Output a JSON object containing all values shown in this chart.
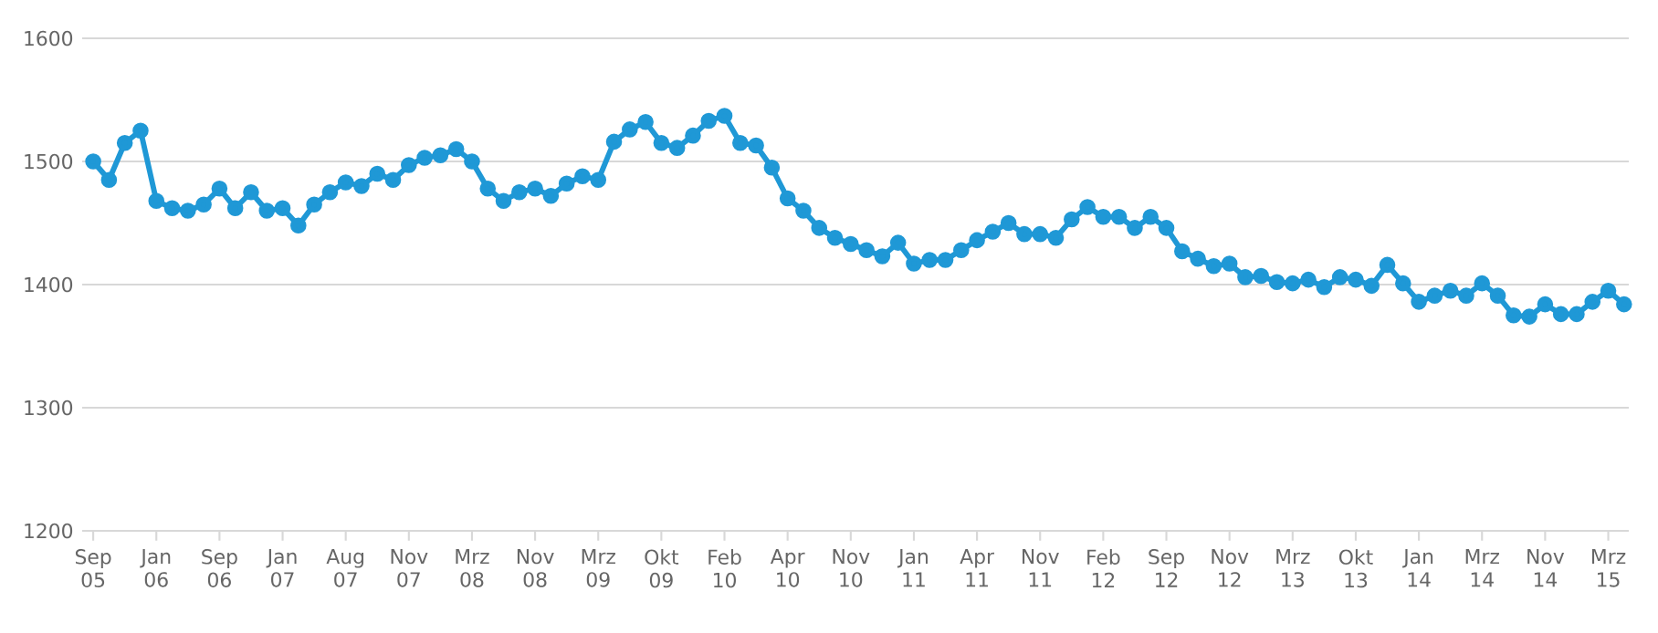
{
  "chart_data": {
    "type": "line",
    "categories": [
      "Sep 05",
      null,
      null,
      null,
      "Jan 06",
      null,
      null,
      null,
      "Sep 06",
      null,
      null,
      null,
      "Jan 07",
      null,
      null,
      null,
      "Aug 07",
      null,
      null,
      null,
      "Nov 07",
      null,
      null,
      null,
      "Mrz 08",
      null,
      null,
      null,
      "Nov 08",
      null,
      null,
      null,
      "Mrz 09",
      null,
      null,
      null,
      "Okt 09",
      null,
      null,
      null,
      "Feb 10",
      null,
      null,
      null,
      "Apr 10",
      null,
      null,
      null,
      "Nov 10",
      null,
      null,
      null,
      "Jan 11",
      null,
      null,
      null,
      "Apr 11",
      null,
      null,
      null,
      "Nov 11",
      null,
      null,
      null,
      "Feb 12",
      null,
      null,
      null,
      "Sep 12",
      null,
      null,
      null,
      "Nov 12",
      null,
      null,
      null,
      "Mrz 13",
      null,
      null,
      null,
      "Okt 13",
      null,
      null,
      null,
      "Jan 14",
      null,
      null,
      null,
      "Mrz 14",
      null,
      null,
      null,
      "Nov 14",
      null,
      null,
      null,
      "Mrz 15",
      null
    ],
    "values": [
      1500,
      1485,
      1515,
      1525,
      1468,
      1462,
      1460,
      1465,
      1478,
      1462,
      1475,
      1460,
      1462,
      1448,
      1465,
      1475,
      1483,
      1480,
      1490,
      1485,
      1497,
      1503,
      1505,
      1510,
      1500,
      1478,
      1468,
      1475,
      1478,
      1472,
      1482,
      1488,
      1485,
      1516,
      1526,
      1532,
      1515,
      1511,
      1521,
      1533,
      1537,
      1515,
      1513,
      1495,
      1470,
      1460,
      1446,
      1438,
      1433,
      1428,
      1423,
      1434,
      1417,
      1420,
      1420,
      1428,
      1436,
      1443,
      1450,
      1441,
      1441,
      1438,
      1453,
      1463,
      1455,
      1455,
      1446,
      1455,
      1446,
      1427,
      1421,
      1415,
      1417,
      1406,
      1407,
      1402,
      1401,
      1404,
      1398,
      1406,
      1404,
      1399,
      1416,
      1401,
      1386,
      1391,
      1395,
      1391,
      1401,
      1391,
      1375,
      1374,
      1384,
      1376,
      1376,
      1386,
      1395,
      1384
    ],
    "color": "#1f98d6",
    "ylim": [
      1200,
      1600
    ],
    "yticks": [
      1200,
      1300,
      1400,
      1500,
      1600
    ],
    "grid": "y",
    "marker": "circle"
  }
}
